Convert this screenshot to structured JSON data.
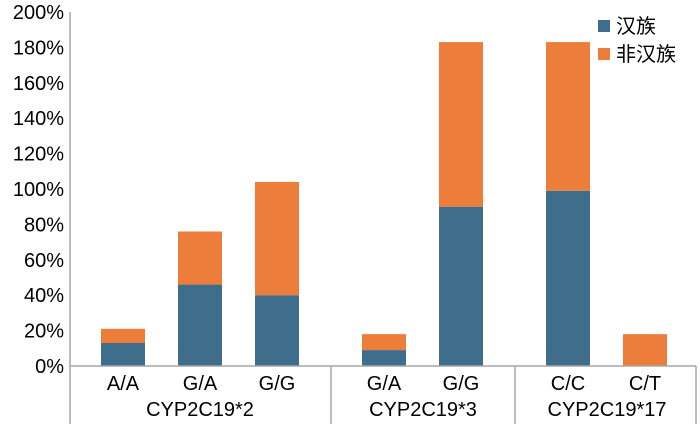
{
  "chart_data": {
    "type": "bar",
    "stacked": true,
    "title": "",
    "xlabel": "",
    "ylabel": "",
    "ylim": [
      0,
      200
    ],
    "yticks": [
      0,
      20,
      40,
      60,
      80,
      100,
      120,
      140,
      160,
      180,
      200
    ],
    "ytick_format": "%",
    "grid": false,
    "legend_position": "top-right",
    "colors": {
      "han": "#3f6e8c",
      "non_han": "#ed7d3a"
    },
    "categories": [
      "A/A",
      "G/A",
      "G/G",
      "G/A",
      "G/G",
      "C/C",
      "C/T"
    ],
    "groups": [
      {
        "name": "CYP2C19*2",
        "categories": [
          "A/A",
          "G/A",
          "G/G"
        ]
      },
      {
        "name": "CYP2C19*3",
        "categories": [
          "G/A",
          "G/G"
        ]
      },
      {
        "name": "CYP2C19*17",
        "categories": [
          "C/C",
          "C/T"
        ]
      }
    ],
    "series": [
      {
        "name": "汉族",
        "color": "#3f6e8c",
        "values": [
          13,
          46,
          40,
          9,
          90,
          99,
          0
        ]
      },
      {
        "name": "非汉族",
        "color": "#ed7d3a",
        "values": [
          8,
          30,
          64,
          9,
          93,
          84,
          18
        ]
      }
    ]
  }
}
